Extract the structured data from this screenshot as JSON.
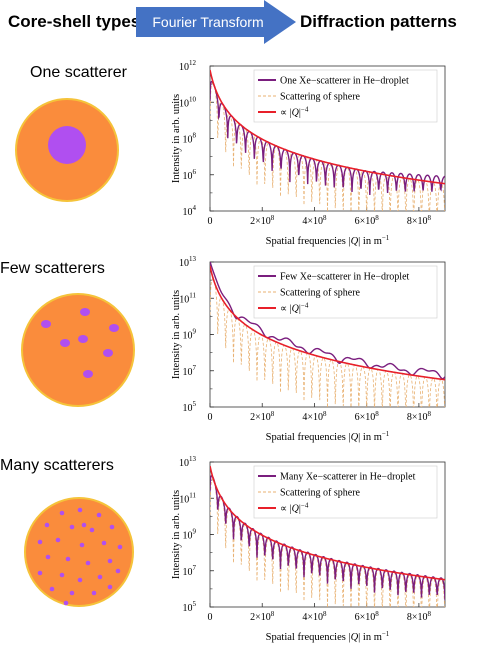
{
  "header": {
    "left_title": "Core-shell types",
    "arrow_label": "Fourier Transform",
    "right_title": "Diffraction patterns"
  },
  "colors": {
    "droplet_fill": "#FA8C3C",
    "droplet_edge": "#F5C33A",
    "scatterer": "#B04FF0",
    "arrow": "#4472C4",
    "xe_line": "#7A1E7E",
    "sphere_line": "#E8B070",
    "power_law": "#E8202A"
  },
  "rows": [
    {
      "label": "One scatterer",
      "chart_data": {
        "type": "line",
        "ylabel": "Intensity in arb. units",
        "xlabel_main": "Spatial frequencies |",
        "xlabel_q": "Q",
        "xlabel_tail": "| in m",
        "xlabel_exp": "−1",
        "y_scale": "log",
        "ylim": [
          10000,
          1000000000000
        ],
        "xlim": [
          0,
          900000000
        ],
        "x_ticks": [
          {
            "m": "0",
            "e": ""
          },
          {
            "m": "2×10",
            "e": "8"
          },
          {
            "m": "4×10",
            "e": "8"
          },
          {
            "m": "6×10",
            "e": "8"
          },
          {
            "m": "8×10",
            "e": "8"
          }
        ],
        "y_ticks": [
          {
            "m": "10",
            "e": "4"
          },
          {
            "m": "10",
            "e": "6"
          },
          {
            "m": "10",
            "e": "8"
          },
          {
            "m": "10",
            "e": "10"
          },
          {
            "m": "10",
            "e": "12"
          }
        ],
        "legend": [
          {
            "t": "One Xe−scatterer in He−droplet"
          },
          {
            "t": "Scattering of sphere"
          },
          {
            "t": "∝ |",
            "q": "Q",
            "tail": "|",
            "e": "−4"
          }
        ]
      }
    },
    {
      "label": "Few scatterers",
      "chart_data": {
        "type": "line",
        "ylabel": "Intensity in arb. units",
        "xlabel_main": "Spatial frequencies |",
        "xlabel_q": "Q",
        "xlabel_tail": "| in m",
        "xlabel_exp": "−1",
        "y_scale": "log",
        "ylim": [
          100000,
          10000000000000
        ],
        "xlim": [
          0,
          900000000
        ],
        "x_ticks": [
          {
            "m": "0",
            "e": ""
          },
          {
            "m": "2×10",
            "e": "8"
          },
          {
            "m": "4×10",
            "e": "8"
          },
          {
            "m": "6×10",
            "e": "8"
          },
          {
            "m": "8×10",
            "e": "8"
          }
        ],
        "y_ticks": [
          {
            "m": "10",
            "e": "5"
          },
          {
            "m": "10",
            "e": "7"
          },
          {
            "m": "10",
            "e": "9"
          },
          {
            "m": "10",
            "e": "11"
          },
          {
            "m": "10",
            "e": "13"
          }
        ],
        "legend": [
          {
            "t": "Few Xe−scatterer in He−droplet"
          },
          {
            "t": "Scattering of sphere"
          },
          {
            "t": "∝ |",
            "q": "Q",
            "tail": "|",
            "e": "−4"
          }
        ]
      }
    },
    {
      "label": "Many scatterers",
      "chart_data": {
        "type": "line",
        "ylabel": "Intensity in arb. units",
        "xlabel_main": "Spatial frequencies |",
        "xlabel_q": "Q",
        "xlabel_tail": "| in m",
        "xlabel_exp": "−1",
        "y_scale": "log",
        "ylim": [
          100000,
          10000000000000
        ],
        "xlim": [
          0,
          900000000
        ],
        "x_ticks": [
          {
            "m": "0",
            "e": ""
          },
          {
            "m": "2×10",
            "e": "8"
          },
          {
            "m": "4×10",
            "e": "8"
          },
          {
            "m": "6×10",
            "e": "8"
          },
          {
            "m": "8×10",
            "e": "8"
          }
        ],
        "y_ticks": [
          {
            "m": "10",
            "e": "5"
          },
          {
            "m": "10",
            "e": "7"
          },
          {
            "m": "10",
            "e": "9"
          },
          {
            "m": "10",
            "e": "11"
          },
          {
            "m": "10",
            "e": "13"
          }
        ],
        "legend": [
          {
            "t": "Many Xe−scatterer in He−droplet"
          },
          {
            "t": "Scattering of sphere"
          },
          {
            "t": "∝ |",
            "q": "Q",
            "tail": "|",
            "e": "−4"
          }
        ]
      }
    }
  ]
}
